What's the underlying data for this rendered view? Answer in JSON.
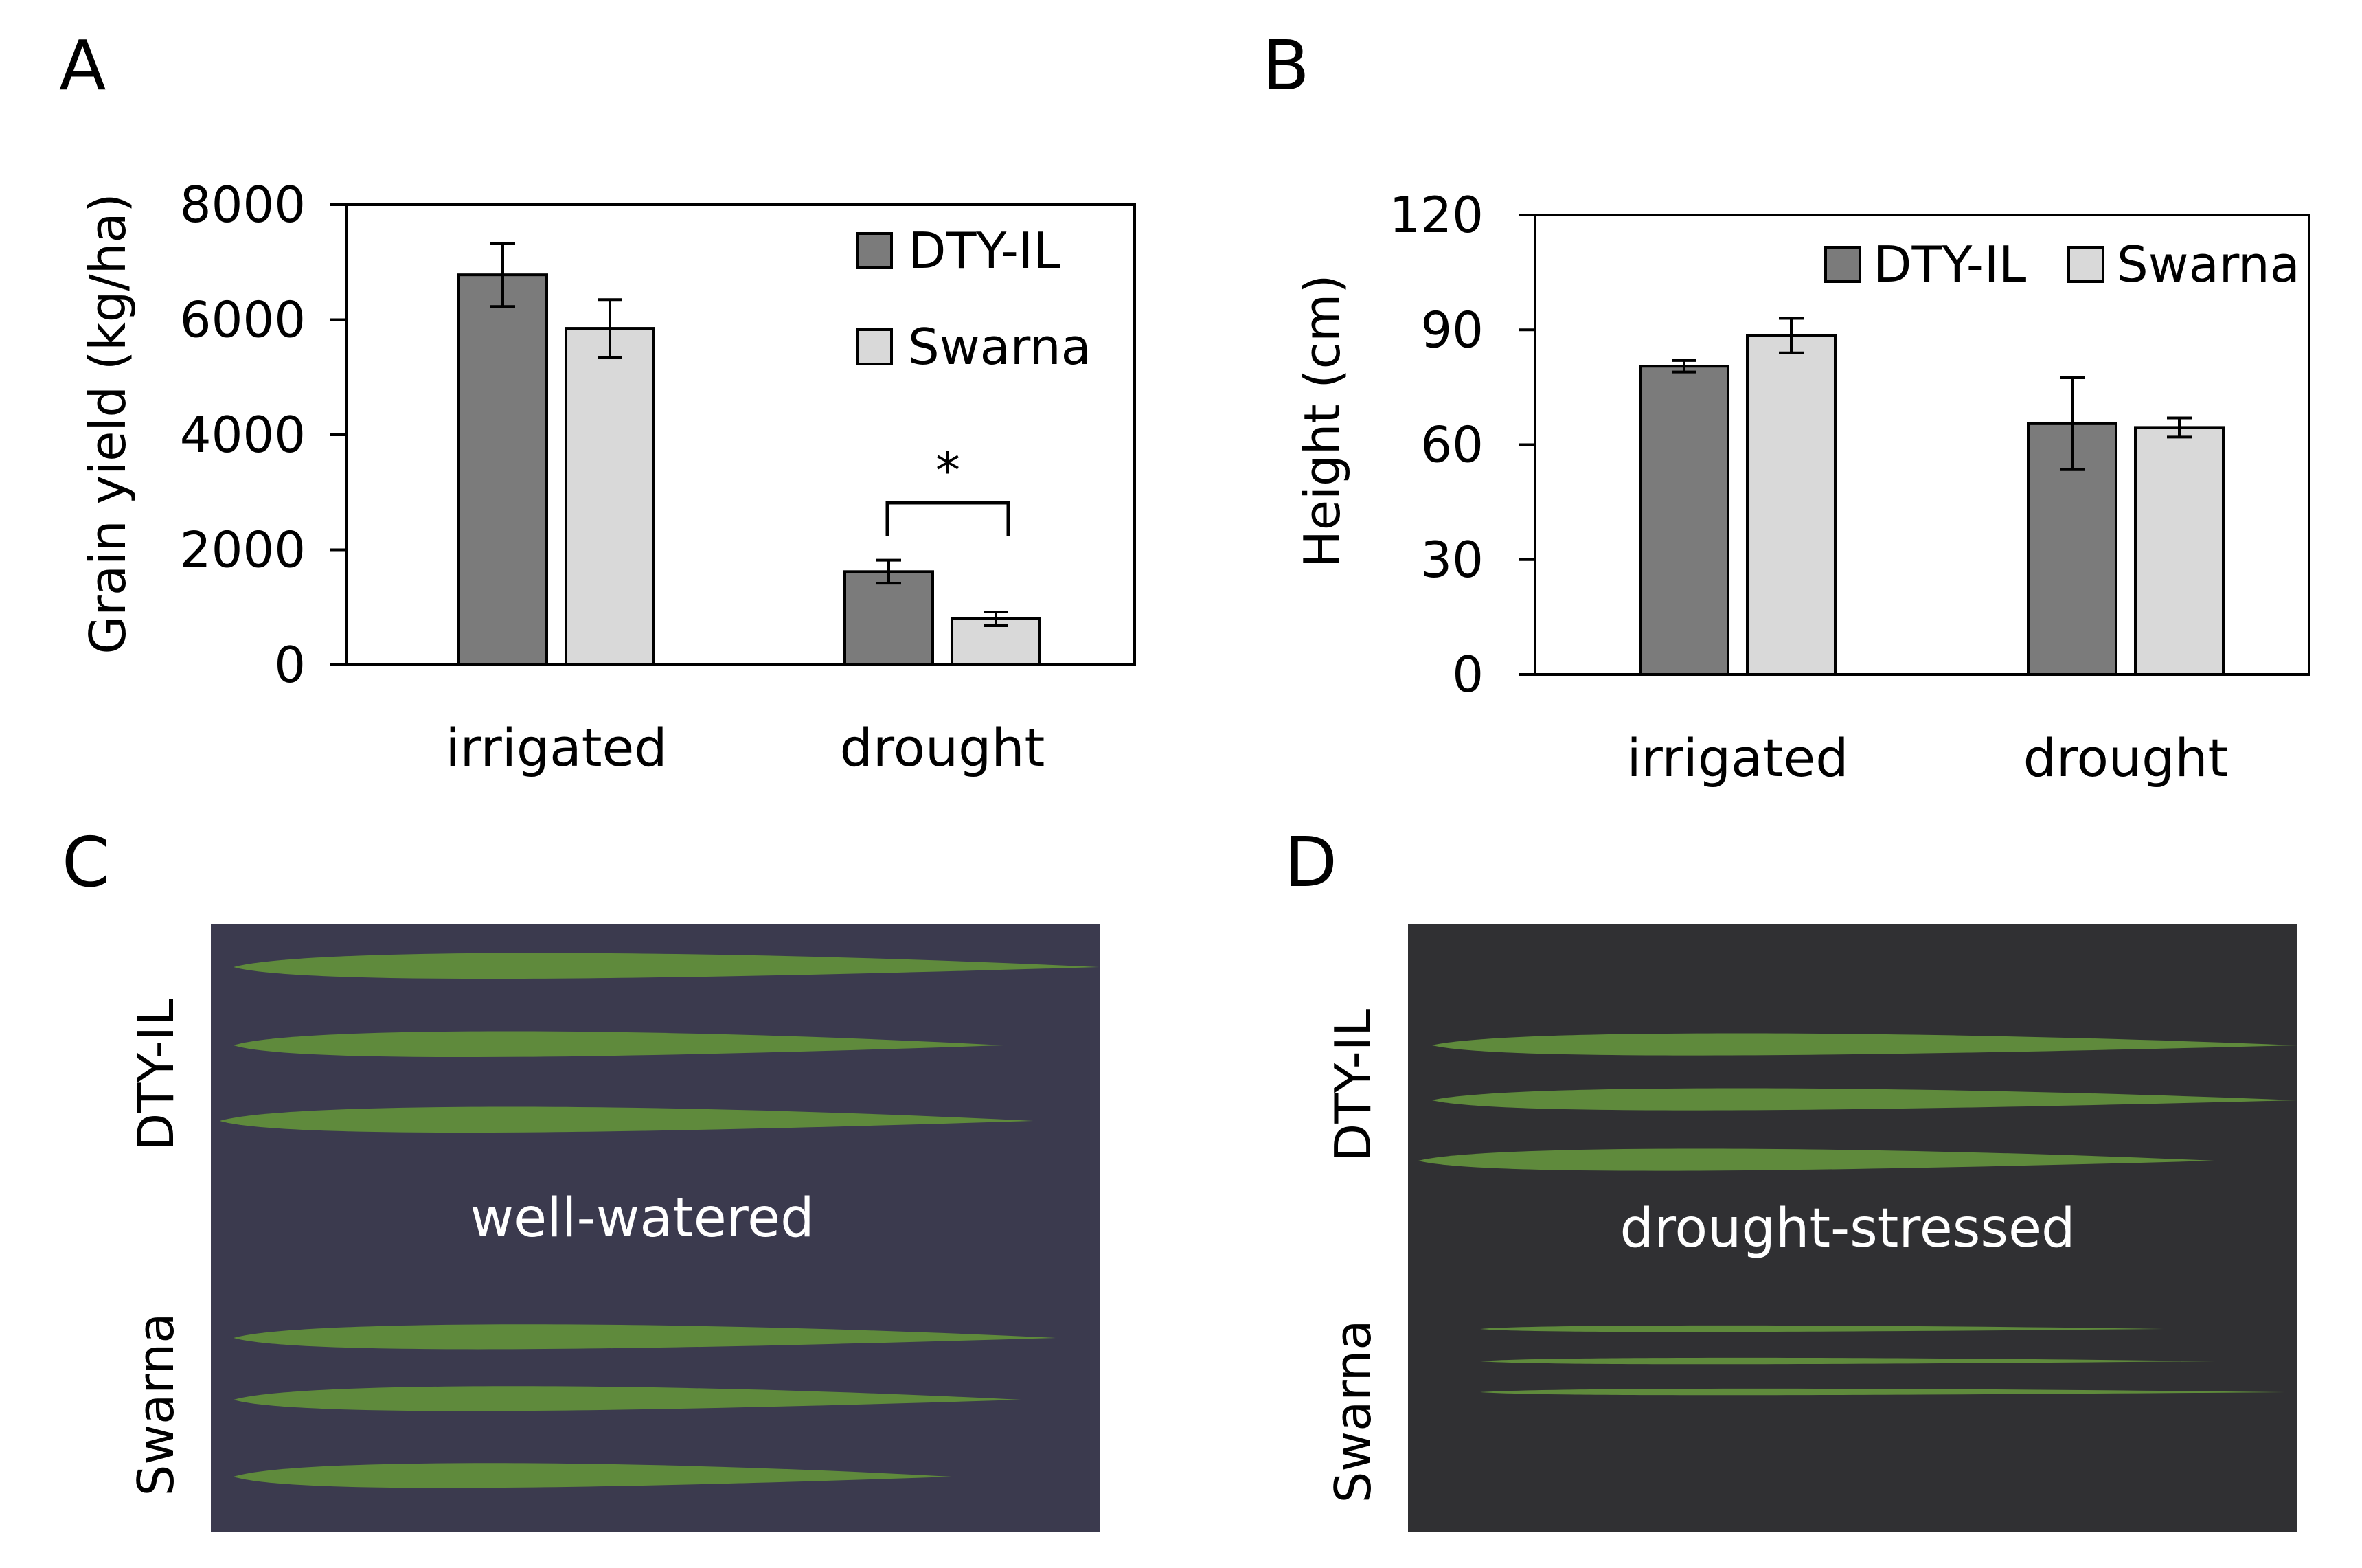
{
  "colors": {
    "dty_il": "#7b7b7b",
    "swarna": "#d9d9d9",
    "axis": "#000000",
    "photo_c_bg": "#3b3a4e",
    "photo_d_bg": "#303033",
    "leaf": "#5f8a3c"
  },
  "panels": {
    "A": {
      "letter": "A"
    },
    "B": {
      "letter": "B"
    },
    "C": {
      "letter": "C",
      "row_labels": [
        "DTY-IL",
        "Swarna"
      ],
      "center_label": "well-watered",
      "dty_leaf_lengths": [
        1.0,
        0.89,
        0.94
      ],
      "swarna_leaf_lengths": [
        0.95,
        0.91,
        0.83
      ]
    },
    "D": {
      "letter": "D",
      "row_labels": [
        "DTY-IL",
        "Swarna"
      ],
      "center_label": "drought-stressed",
      "dty_leaf_lengths": [
        1.0,
        1.0,
        0.92
      ],
      "swarna_leaf_lengths": [
        0.79,
        0.85,
        0.93
      ]
    }
  },
  "chart_data": [
    {
      "type": "bar",
      "panel": "A",
      "title": "",
      "xlabel": "",
      "ylabel": "Grain yield (kg/ha)",
      "categories": [
        "irrigated",
        "drought"
      ],
      "ylim": [
        0,
        8000
      ],
      "yticks": [
        "8000",
        "6000",
        "4000",
        "2000",
        "0"
      ],
      "yticks_values": [
        8000,
        6000,
        4000,
        2000,
        0
      ],
      "series": [
        {
          "name": "DTY-IL",
          "values": [
            6780,
            1620
          ],
          "errors": [
            550,
            200
          ]
        },
        {
          "name": "Swarna",
          "values": [
            5850,
            800
          ],
          "errors": [
            500,
            120
          ]
        }
      ],
      "significance": {
        "category": "drought",
        "label": "*"
      },
      "legend": "top-right, stacked vertically"
    },
    {
      "type": "bar",
      "panel": "B",
      "title": "",
      "xlabel": "",
      "ylabel": "Height (cm)",
      "categories": [
        "irrigated",
        "drought"
      ],
      "ylim": [
        0,
        120
      ],
      "yticks": [
        "120",
        "90",
        "60",
        "30",
        "0"
      ],
      "yticks_values": [
        120,
        90,
        60,
        30,
        0
      ],
      "series": [
        {
          "name": "DTY-IL",
          "values": [
            80.5,
            65.5
          ],
          "errors": [
            1.5,
            12
          ]
        },
        {
          "name": "Swarna",
          "values": [
            88.5,
            64.5
          ],
          "errors": [
            4.5,
            2.5
          ]
        }
      ],
      "legend": "top-right, single row"
    }
  ]
}
